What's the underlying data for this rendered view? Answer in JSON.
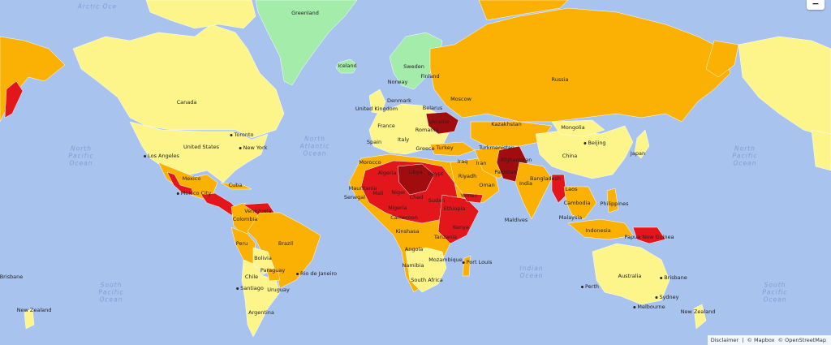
{
  "map": {
    "colors": {
      "ocean": "#a8c3ee",
      "low": "#fdf58a",
      "medium": "#fbb103",
      "high": "#e3161b",
      "extreme": "#a10c0f",
      "insignificant": "#a4ecaa"
    },
    "ocean_labels": [
      {
        "id": "arctic-left",
        "lines": [
          "Arctic Oce"
        ]
      },
      {
        "id": "north-pacific-left",
        "lines": [
          "North",
          "Pacific",
          "Ocean"
        ]
      },
      {
        "id": "north-atlantic",
        "lines": [
          "North",
          "Atlantic",
          "Ocean"
        ]
      },
      {
        "id": "north-pacific-right",
        "lines": [
          "North",
          "Pacific",
          "Ocean"
        ]
      },
      {
        "id": "south-pacific-left",
        "lines": [
          "South",
          "Pacific",
          "Ocean"
        ]
      },
      {
        "id": "indian-ocean",
        "lines": [
          "Indian",
          "Ocean"
        ]
      },
      {
        "id": "south-pacific-right",
        "lines": [
          "South",
          "Pacific",
          "Ocean"
        ]
      }
    ],
    "country_labels": [
      "Greenland",
      "Iceland",
      "Canada",
      "United States",
      "Mexico",
      "Cuba",
      "Venezuela",
      "Colombia",
      "Peru",
      "Brazil",
      "Bolivia",
      "Paraguay",
      "Chile",
      "Uruguay",
      "Argentina",
      "Sweden",
      "Finland",
      "Norway",
      "Denmark",
      "United Kingdom",
      "Belarus",
      "France",
      "Ukraine",
      "Romania",
      "Spain",
      "Italy",
      "Greece",
      "Turkey",
      "Morocco",
      "Algeria",
      "Libya",
      "Egypt",
      "Mauritania",
      "Niger",
      "Mali",
      "Chad",
      "Sudan",
      "Senegal",
      "Nigeria",
      "Cameroon",
      "Ethiopia",
      "Kenya",
      "Tanzania",
      "Angola",
      "Namibia",
      "Mozambique",
      "South Africa",
      "Iraq",
      "Iran",
      "Yemen",
      "Oman",
      "Kazakhstan",
      "Turkmenistan",
      "Afghanistan",
      "Pakistan",
      "India",
      "Bangladesh",
      "Mongolia",
      "China",
      "Japan",
      "Laos",
      "Cambodia",
      "Philippines",
      "Malaysia",
      "Indonesia",
      "Maldives",
      "Papua New Guinea",
      "Australia",
      "Russia",
      "Kinshasa",
      "Riyadh",
      "Moscow"
    ],
    "city_labels": [
      "Los Angeles",
      "Toronto",
      "New York",
      "Mexico City",
      "Rio de Janeiro",
      "Santiago",
      "Beijing",
      "Port Louis",
      "Perth",
      "Sydney",
      "Melbourne",
      "Brisbane"
    ],
    "extra_labels": [
      "New Zealand",
      "Brisbane"
    ]
  },
  "zoom": {
    "out_label": "−"
  },
  "attribution": {
    "disclaimer": "Disclaimer",
    "mapbox": "© Mapbox",
    "osm": "© OpenStreetMap",
    "sep": "|"
  }
}
